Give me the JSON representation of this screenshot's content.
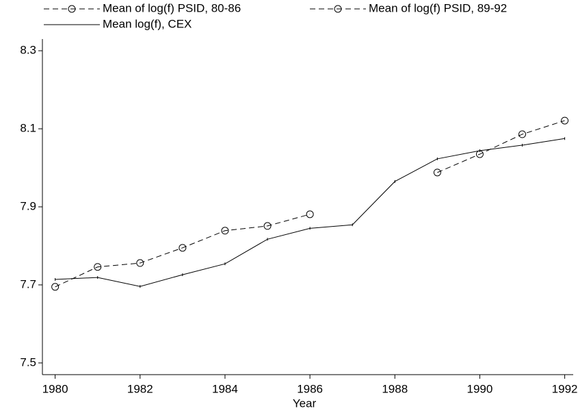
{
  "chart_data": {
    "type": "line",
    "x": [
      1980,
      1981,
      1982,
      1983,
      1984,
      1985,
      1986,
      1987,
      1988,
      1989,
      1990,
      1991,
      1992
    ],
    "series": [
      {
        "name": "Mean of log(f) PSID, 80-86",
        "color": "#000000",
        "style": "dashed",
        "marker": "circle",
        "values": [
          7.695,
          7.746,
          7.756,
          7.795,
          7.839,
          7.851,
          7.881,
          null,
          null,
          null,
          null,
          null,
          null
        ]
      },
      {
        "name": "Mean of log(f) PSID, 89-92",
        "color": "#000000",
        "style": "dashed",
        "marker": "circle",
        "values": [
          null,
          null,
          null,
          null,
          null,
          null,
          null,
          null,
          null,
          7.988,
          8.035,
          8.086,
          8.121
        ]
      },
      {
        "name": "Mean log(f), CEX",
        "color": "#000000",
        "style": "solid",
        "marker": "tick",
        "values": [
          7.714,
          7.719,
          7.696,
          7.726,
          7.754,
          7.817,
          7.845,
          7.854,
          7.965,
          8.023,
          8.044,
          8.058,
          8.075
        ]
      }
    ],
    "x_label": "Year",
    "xlim": [
      1979.7,
      1992.2
    ],
    "xticks": [
      1980,
      1982,
      1984,
      1986,
      1988,
      1990,
      1992
    ],
    "ylim": [
      7.47,
      8.33
    ],
    "yticks": [
      {
        "value": 7.5,
        "label": "7.5"
      },
      {
        "value": 7.7,
        "label": "7.7"
      },
      {
        "value": 7.9,
        "label": "7.9"
      },
      {
        "value": 8.1,
        "label": "8.1"
      },
      {
        "value": 8.3,
        "label": "8.3"
      }
    ],
    "grid": false
  }
}
